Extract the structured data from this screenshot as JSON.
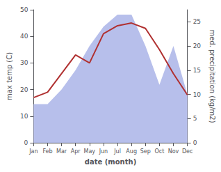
{
  "chart_data": {
    "type": "line",
    "categories": [
      "Jan",
      "Feb",
      "Mar",
      "Apr",
      "May",
      "Jun",
      "Jul",
      "Aug",
      "Sep",
      "Oct",
      "Nov",
      "Dec"
    ],
    "xlabel": "date (month)",
    "ylabel": "max temp (C)",
    "y2label": "med. precipitation (kg/m2)",
    "ylim": [
      0,
      50
    ],
    "yticks": [
      0,
      10,
      20,
      30,
      40,
      50
    ],
    "y2lim": [
      0,
      27.5
    ],
    "y2ticks": [
      0,
      5,
      10,
      15,
      20,
      25
    ],
    "grid": false,
    "series": [
      {
        "type": "area",
        "color": "#aab4e8",
        "axis": "y2",
        "values": [
          8,
          8,
          11,
          15,
          20,
          24,
          26.5,
          26.5,
          20,
          12,
          20,
          10
        ]
      },
      {
        "type": "line",
        "color": "#b03030",
        "values": [
          17,
          19,
          26,
          33,
          30,
          41,
          44,
          45,
          43,
          35,
          26,
          18
        ]
      }
    ]
  }
}
